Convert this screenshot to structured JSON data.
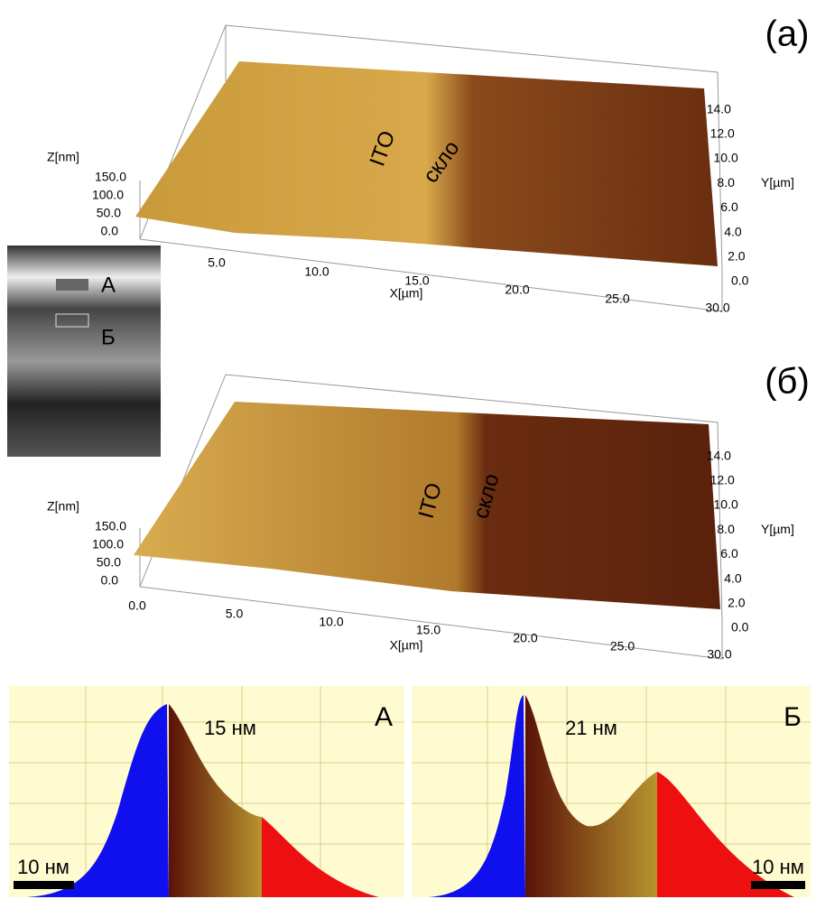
{
  "panels": [
    {
      "label": "(a)",
      "z_title": "Z[nm]",
      "z_ticks": [
        "150.0",
        "100.0",
        "50.0",
        "0.0"
      ],
      "x_title": "X[µm]",
      "x_ticks": [
        "5.0",
        "10.0",
        "15.0",
        "20.0",
        "25.0",
        "30.0"
      ],
      "y_title": "Y[µm]",
      "y_ticks": [
        "0.0",
        "2.0",
        "4.0",
        "6.0",
        "8.0",
        "10.0",
        "12.0",
        "14.0"
      ],
      "annotations": [
        "ITO",
        "скло"
      ]
    },
    {
      "label": "(б)",
      "z_title": "Z[nm]",
      "z_ticks": [
        "150.0",
        "100.0",
        "50.0",
        "0.0"
      ],
      "x_title": "X[µm]",
      "x_ticks": [
        "0.0",
        "5.0",
        "10.0",
        "15.0",
        "20.0",
        "25.0",
        "30.0"
      ],
      "y_title": "Y[µm]",
      "y_ticks": [
        "0.0",
        "2.0",
        "4.0",
        "6.0",
        "8.0",
        "10.0",
        "12.0",
        "14.0"
      ],
      "annotations": [
        "ITO",
        "скло"
      ]
    }
  ],
  "inset": {
    "labels": [
      "А",
      "Б"
    ]
  },
  "histograms": [
    {
      "label": "А",
      "annotation": "15 нм",
      "scale": "10 нм"
    },
    {
      "label": "Б",
      "annotation": "21 нм",
      "scale": "10 нм"
    }
  ]
}
